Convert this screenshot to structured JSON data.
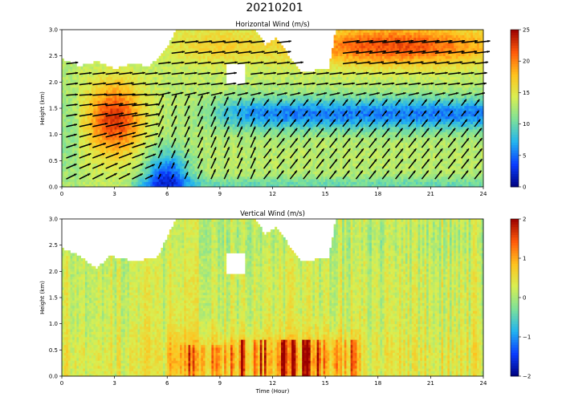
{
  "figure": {
    "title": "20210201"
  },
  "colors": {
    "cmap": [
      "#00007f",
      "#0a3cff",
      "#22b4f0",
      "#7de19a",
      "#d8ef52",
      "#ffc21e",
      "#ff5a0a",
      "#9b0000"
    ]
  },
  "chart_data": [
    {
      "type": "heatmap",
      "title": "Horizontal Wind (m/s)",
      "xlabel": "",
      "ylabel": "Height (km)",
      "xlim": [
        0,
        24
      ],
      "ylim": [
        0,
        3.0
      ],
      "xticks": [
        0,
        3,
        6,
        9,
        12,
        15,
        18,
        21,
        24
      ],
      "yticks": [
        0.0,
        0.5,
        1.0,
        1.5,
        2.0,
        2.5,
        3.0
      ],
      "colorbar": {
        "range": [
          0,
          25
        ],
        "ticks": [
          0,
          5,
          10,
          15,
          20,
          25
        ]
      },
      "overlay": "wind vectors (arrows)",
      "data_top_km": [
        [
          0,
          2.45
        ],
        [
          1,
          2.3
        ],
        [
          2,
          2.4
        ],
        [
          3,
          2.25
        ],
        [
          4,
          2.35
        ],
        [
          5,
          2.3
        ],
        [
          6,
          2.65
        ],
        [
          6.5,
          3.0
        ],
        [
          11,
          3.0
        ],
        [
          11.6,
          2.7
        ],
        [
          12.2,
          2.85
        ],
        [
          13.6,
          2.2
        ],
        [
          15.2,
          2.25
        ],
        [
          15.6,
          3.0
        ],
        [
          23.8,
          3.0
        ]
      ],
      "cloud_gaps": [
        {
          "t": [
            9.3,
            10.5
          ],
          "h": [
            1.95,
            2.35
          ]
        }
      ],
      "regions": [
        {
          "desc": "strong winds aloft",
          "t": [
            14.5,
            24
          ],
          "h": [
            2.2,
            3.0
          ],
          "speed": 22
        },
        {
          "desc": "low-level jet",
          "t": [
            1.5,
            4.5
          ],
          "h": [
            0.6,
            2.0
          ],
          "speed": 19
        },
        {
          "desc": "moderate winds",
          "t": [
            6.5,
            11.5
          ],
          "h": [
            2.4,
            3.0
          ],
          "speed": 16
        },
        {
          "desc": "weak wind layer",
          "t": [
            9,
            24
          ],
          "h": [
            1.1,
            1.8
          ],
          "speed": 6
        },
        {
          "desc": "calm surface layer",
          "t": [
            5,
            7
          ],
          "h": [
            0.0,
            0.6
          ],
          "speed": 3
        }
      ]
    },
    {
      "type": "heatmap",
      "title": "Vertical Wind (m/s)",
      "xlabel": "Time (Hour)",
      "ylabel": "Height (km)",
      "xlim": [
        0,
        24
      ],
      "ylim": [
        0,
        3.0
      ],
      "xticks": [
        0,
        3,
        6,
        9,
        12,
        15,
        18,
        21,
        24
      ],
      "yticks": [
        0.0,
        0.5,
        1.0,
        1.5,
        2.0,
        2.5,
        3.0
      ],
      "colorbar": {
        "range": [
          -2,
          2
        ],
        "ticks": [
          -2,
          -1,
          0,
          1,
          2
        ]
      },
      "data_top_km": [
        [
          0,
          2.45
        ],
        [
          1,
          2.3
        ],
        [
          2,
          2.05
        ],
        [
          2.7,
          2.3
        ],
        [
          4,
          2.2
        ],
        [
          5.4,
          2.25
        ],
        [
          6,
          2.65
        ],
        [
          6.5,
          3.0
        ],
        [
          11,
          3.0
        ],
        [
          11.6,
          2.7
        ],
        [
          12.2,
          2.85
        ],
        [
          13.6,
          2.2
        ],
        [
          15.2,
          2.25
        ],
        [
          15.6,
          3.0
        ],
        [
          23.8,
          3.0
        ]
      ],
      "cloud_gaps": [
        {
          "t": [
            9.3,
            10.5
          ],
          "h": [
            1.95,
            2.35
          ]
        }
      ],
      "regions": [
        {
          "desc": "updraft bursts",
          "t": [
            10,
            16.5
          ],
          "h": [
            0.1,
            0.7
          ],
          "value": 1.2
        },
        {
          "desc": "weak updrafts",
          "t": [
            6.5,
            10
          ],
          "h": [
            0.1,
            0.6
          ],
          "value": 0.6
        },
        {
          "desc": "near-zero background",
          "t": [
            0,
            24
          ],
          "h": [
            0.0,
            3.0
          ],
          "value": 0.2
        }
      ]
    }
  ]
}
